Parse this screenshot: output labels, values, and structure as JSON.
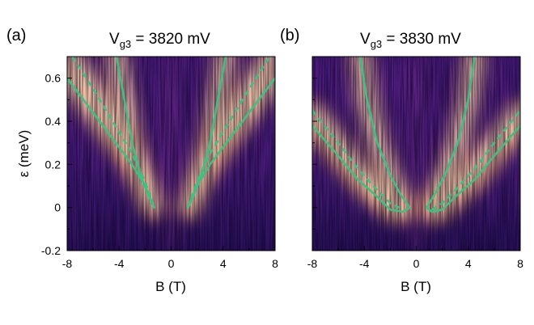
{
  "figure": {
    "colors": {
      "colormap": [
        "#0d0a2b",
        "#2b1258",
        "#4f1d7e",
        "#7c2f86",
        "#b3406f",
        "#e66c52",
        "#f9a561",
        "#fcd89a",
        "#fdf3dc"
      ],
      "fit_curve": "#3ec081",
      "background": "#ffffff"
    }
  },
  "chart_data": [
    {
      "type": "heatmap",
      "panel_letter": "(a)",
      "title_main": "V",
      "title_sub": "g3",
      "title_rest": " = 3820 mV",
      "xlabel": "B (T)",
      "ylabel": "ε (meV)",
      "xlim": [
        -8,
        8
      ],
      "ylim": [
        -0.2,
        0.7
      ],
      "xticks": [
        -8,
        -4,
        0,
        4,
        8
      ],
      "xtick_labels": [
        "-8",
        "-4",
        "0",
        "4",
        "8"
      ],
      "yticks": [
        -0.2,
        0,
        0.2,
        0.4,
        0.6
      ],
      "ytick_labels": [
        "-0.2",
        "0",
        "0.2",
        "0.4",
        "0.6"
      ],
      "grid": false,
      "curves": [
        {
          "style": "solid",
          "points": [
            [
              -8.0,
              0.6
            ],
            [
              -6.0,
              0.44
            ],
            [
              -4.5,
              0.32
            ],
            [
              -3.0,
              0.2
            ],
            [
              -2.0,
              0.1
            ],
            [
              -1.3,
              0.0
            ]
          ]
        },
        {
          "style": "solid",
          "points": [
            [
              -4.2,
              0.7
            ],
            [
              -3.6,
              0.5
            ],
            [
              -3.0,
              0.3
            ],
            [
              -2.3,
              0.14
            ],
            [
              -1.7,
              0.05
            ],
            [
              -1.3,
              0.0
            ]
          ]
        },
        {
          "style": "dashed",
          "points": [
            [
              -7.6,
              0.7
            ],
            [
              -6.0,
              0.55
            ],
            [
              -4.5,
              0.4
            ],
            [
              -3.0,
              0.25
            ],
            [
              -2.0,
              0.12
            ],
            [
              -1.3,
              0.0
            ]
          ]
        },
        {
          "style": "solid",
          "points": [
            [
              1.3,
              0.0
            ],
            [
              2.0,
              0.1
            ],
            [
              3.0,
              0.2
            ],
            [
              4.5,
              0.32
            ],
            [
              6.0,
              0.44
            ],
            [
              8.0,
              0.6
            ]
          ]
        },
        {
          "style": "solid",
          "points": [
            [
              1.3,
              0.0
            ],
            [
              1.7,
              0.05
            ],
            [
              2.3,
              0.14
            ],
            [
              3.0,
              0.3
            ],
            [
              3.6,
              0.5
            ],
            [
              4.2,
              0.7
            ]
          ]
        },
        {
          "style": "dashed",
          "points": [
            [
              1.3,
              0.0
            ],
            [
              2.0,
              0.12
            ],
            [
              3.0,
              0.25
            ],
            [
              4.5,
              0.4
            ],
            [
              6.0,
              0.55
            ],
            [
              7.6,
              0.7
            ]
          ]
        }
      ]
    },
    {
      "type": "heatmap",
      "panel_letter": "(b)",
      "title_main": "V",
      "title_sub": "g3",
      "title_rest": " = 3830 mV",
      "xlabel": "B (T)",
      "ylabel": "",
      "xlim": [
        -8,
        8
      ],
      "ylim": [
        -0.2,
        0.7
      ],
      "xticks": [
        -8,
        -4,
        0,
        4,
        8
      ],
      "xtick_labels": [
        "-8",
        "-4",
        "0",
        "4",
        "8"
      ],
      "yticks": [
        -0.2,
        0,
        0.2,
        0.4,
        0.6
      ],
      "ytick_labels": [],
      "grid": false,
      "curves": [
        {
          "style": "solid",
          "points": [
            [
              -8.0,
              0.38
            ],
            [
              -6.0,
              0.24
            ],
            [
              -4.5,
              0.13
            ],
            [
              -3.0,
              0.05
            ],
            [
              -2.0,
              -0.01
            ],
            [
              -1.0,
              -0.02
            ],
            [
              -0.5,
              0.0
            ]
          ]
        },
        {
          "style": "solid",
          "points": [
            [
              -4.3,
              0.7
            ],
            [
              -3.8,
              0.5
            ],
            [
              -3.0,
              0.3
            ],
            [
              -2.0,
              0.15
            ],
            [
              -1.2,
              0.06
            ],
            [
              -0.5,
              0.0
            ]
          ]
        },
        {
          "style": "dashed",
          "points": [
            [
              -8.0,
              0.45
            ],
            [
              -6.0,
              0.3
            ],
            [
              -4.5,
              0.18
            ],
            [
              -3.0,
              0.08
            ],
            [
              -2.0,
              0.02
            ],
            [
              -1.0,
              -0.01
            ]
          ]
        },
        {
          "style": "solid",
          "points": [
            [
              0.8,
              0.0
            ],
            [
              1.2,
              -0.02
            ],
            [
              2.0,
              -0.01
            ],
            [
              3.0,
              0.05
            ],
            [
              4.5,
              0.13
            ],
            [
              6.0,
              0.24
            ],
            [
              8.0,
              0.38
            ]
          ]
        },
        {
          "style": "solid",
          "points": [
            [
              0.8,
              0.0
            ],
            [
              1.4,
              0.06
            ],
            [
              2.2,
              0.15
            ],
            [
              3.2,
              0.3
            ],
            [
              4.0,
              0.5
            ],
            [
              4.5,
              0.7
            ]
          ]
        },
        {
          "style": "dashed",
          "points": [
            [
              1.2,
              -0.01
            ],
            [
              2.0,
              0.02
            ],
            [
              3.0,
              0.08
            ],
            [
              4.5,
              0.18
            ],
            [
              6.0,
              0.3
            ],
            [
              8.0,
              0.45
            ]
          ]
        }
      ]
    }
  ]
}
